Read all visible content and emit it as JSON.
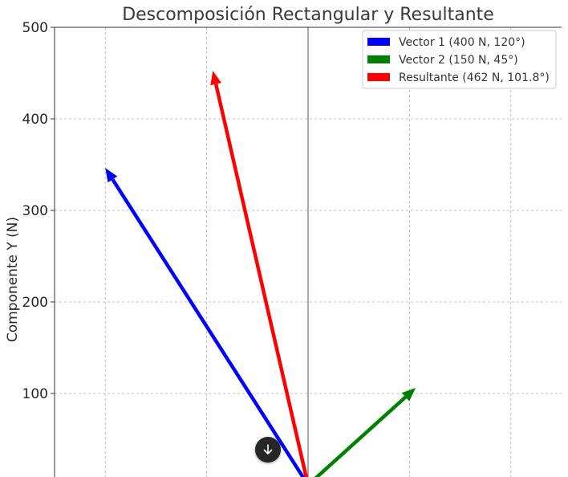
{
  "chart_data": {
    "type": "vector",
    "title": "Descomposición Rectangular y Resultante",
    "xlabel": "",
    "ylabel": "Componente Y (N)",
    "xlim": [
      -250,
      250
    ],
    "ylim": [
      0,
      500
    ],
    "yticks": [
      100,
      200,
      300,
      400,
      500
    ],
    "grid": true,
    "legend_position": "top-right",
    "series": [
      {
        "name": "Vector 1 (400 N, 120°)",
        "color": "#0000ff",
        "magnitude": 400,
        "angle_deg": 120,
        "x": -200,
        "y": 346.4
      },
      {
        "name": "Vector 2 (150 N, 45°)",
        "color": "#008000",
        "magnitude": 150,
        "angle_deg": 45,
        "x": 106.1,
        "y": 106.1
      },
      {
        "name": "Resultante (462 N, 101.8°)",
        "color": "#ff0000",
        "magnitude": 462,
        "angle_deg": 101.8,
        "x": -93.9,
        "y": 452.5
      }
    ]
  },
  "ui": {
    "scroll_button_icon": "arrow-down-icon"
  }
}
